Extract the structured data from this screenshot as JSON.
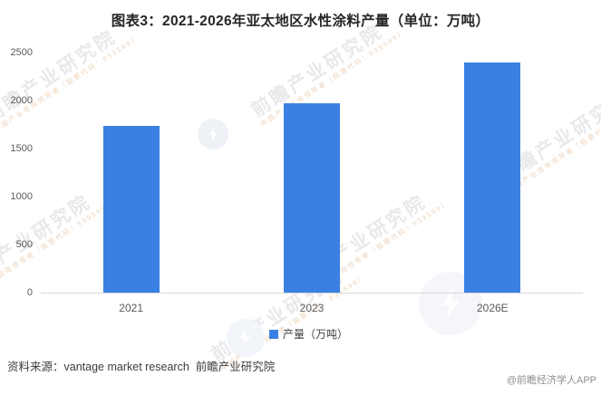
{
  "title": "图表3：2021-2026年亚太地区水性涂料产量（单位：万吨）",
  "chart_data": {
    "type": "bar",
    "title": "图表3：2021-2026年亚太地区水性涂料产量（单位：万吨）",
    "categories": [
      "2021",
      "2023",
      "2026E"
    ],
    "series": [
      {
        "name": "产量（万吨）",
        "values": [
          1735,
          1975,
          2395
        ]
      }
    ],
    "values": [
      1735,
      1975,
      2395
    ],
    "xlabel": "",
    "ylabel": "",
    "ylim": [
      0,
      2500
    ],
    "yticks": [
      0,
      500,
      1000,
      1500,
      2000,
      2500
    ],
    "grid": false,
    "legend_position": "bottom",
    "bar_color": "#3a80e2"
  },
  "legend": {
    "label": "产量（万吨）",
    "swatch_color": "#3a80e2"
  },
  "footer": {
    "source_label": "资料来源：",
    "source_text": "vantage market research  前瞻产业研究院",
    "copyright": "@前瞻经济学人APP"
  },
  "watermark": {
    "brand_text": "前瞻产业研究院",
    "sub_text": "中国产业咨询领导者（股票代码：839599）"
  }
}
